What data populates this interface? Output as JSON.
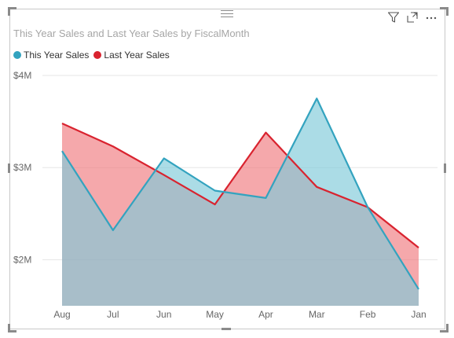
{
  "colors": {
    "this_year": "#33a3bf",
    "last_year": "#d9232f",
    "this_year_fill": "#7ec9d9",
    "last_year_fill": "#f07a7e",
    "gridline": "#e6e6e6"
  },
  "toolbar": {
    "filter_icon": "filter-icon",
    "focus_icon": "focus-mode-icon",
    "more_icon": "more-options-icon"
  },
  "chart_data": {
    "type": "area",
    "title": "This Year Sales and Last Year Sales by FiscalMonth",
    "xlabel": "",
    "ylabel": "",
    "categories": [
      "Aug",
      "Jul",
      "Jun",
      "May",
      "Apr",
      "Mar",
      "Feb",
      "Jan"
    ],
    "series": [
      {
        "name": "This Year Sales",
        "values": [
          3.18,
          2.32,
          3.1,
          2.75,
          2.67,
          3.75,
          2.57,
          1.68
        ]
      },
      {
        "name": "Last Year Sales",
        "values": [
          3.48,
          3.23,
          2.92,
          2.6,
          3.38,
          2.79,
          2.57,
          2.13
        ]
      }
    ],
    "y_ticks": [
      {
        "value": 2,
        "label": "$2M"
      },
      {
        "value": 3,
        "label": "$3M"
      },
      {
        "value": 4,
        "label": "$4M"
      }
    ],
    "ylim": [
      1.5,
      4.0
    ],
    "grid": true,
    "legend_position": "top-left"
  }
}
